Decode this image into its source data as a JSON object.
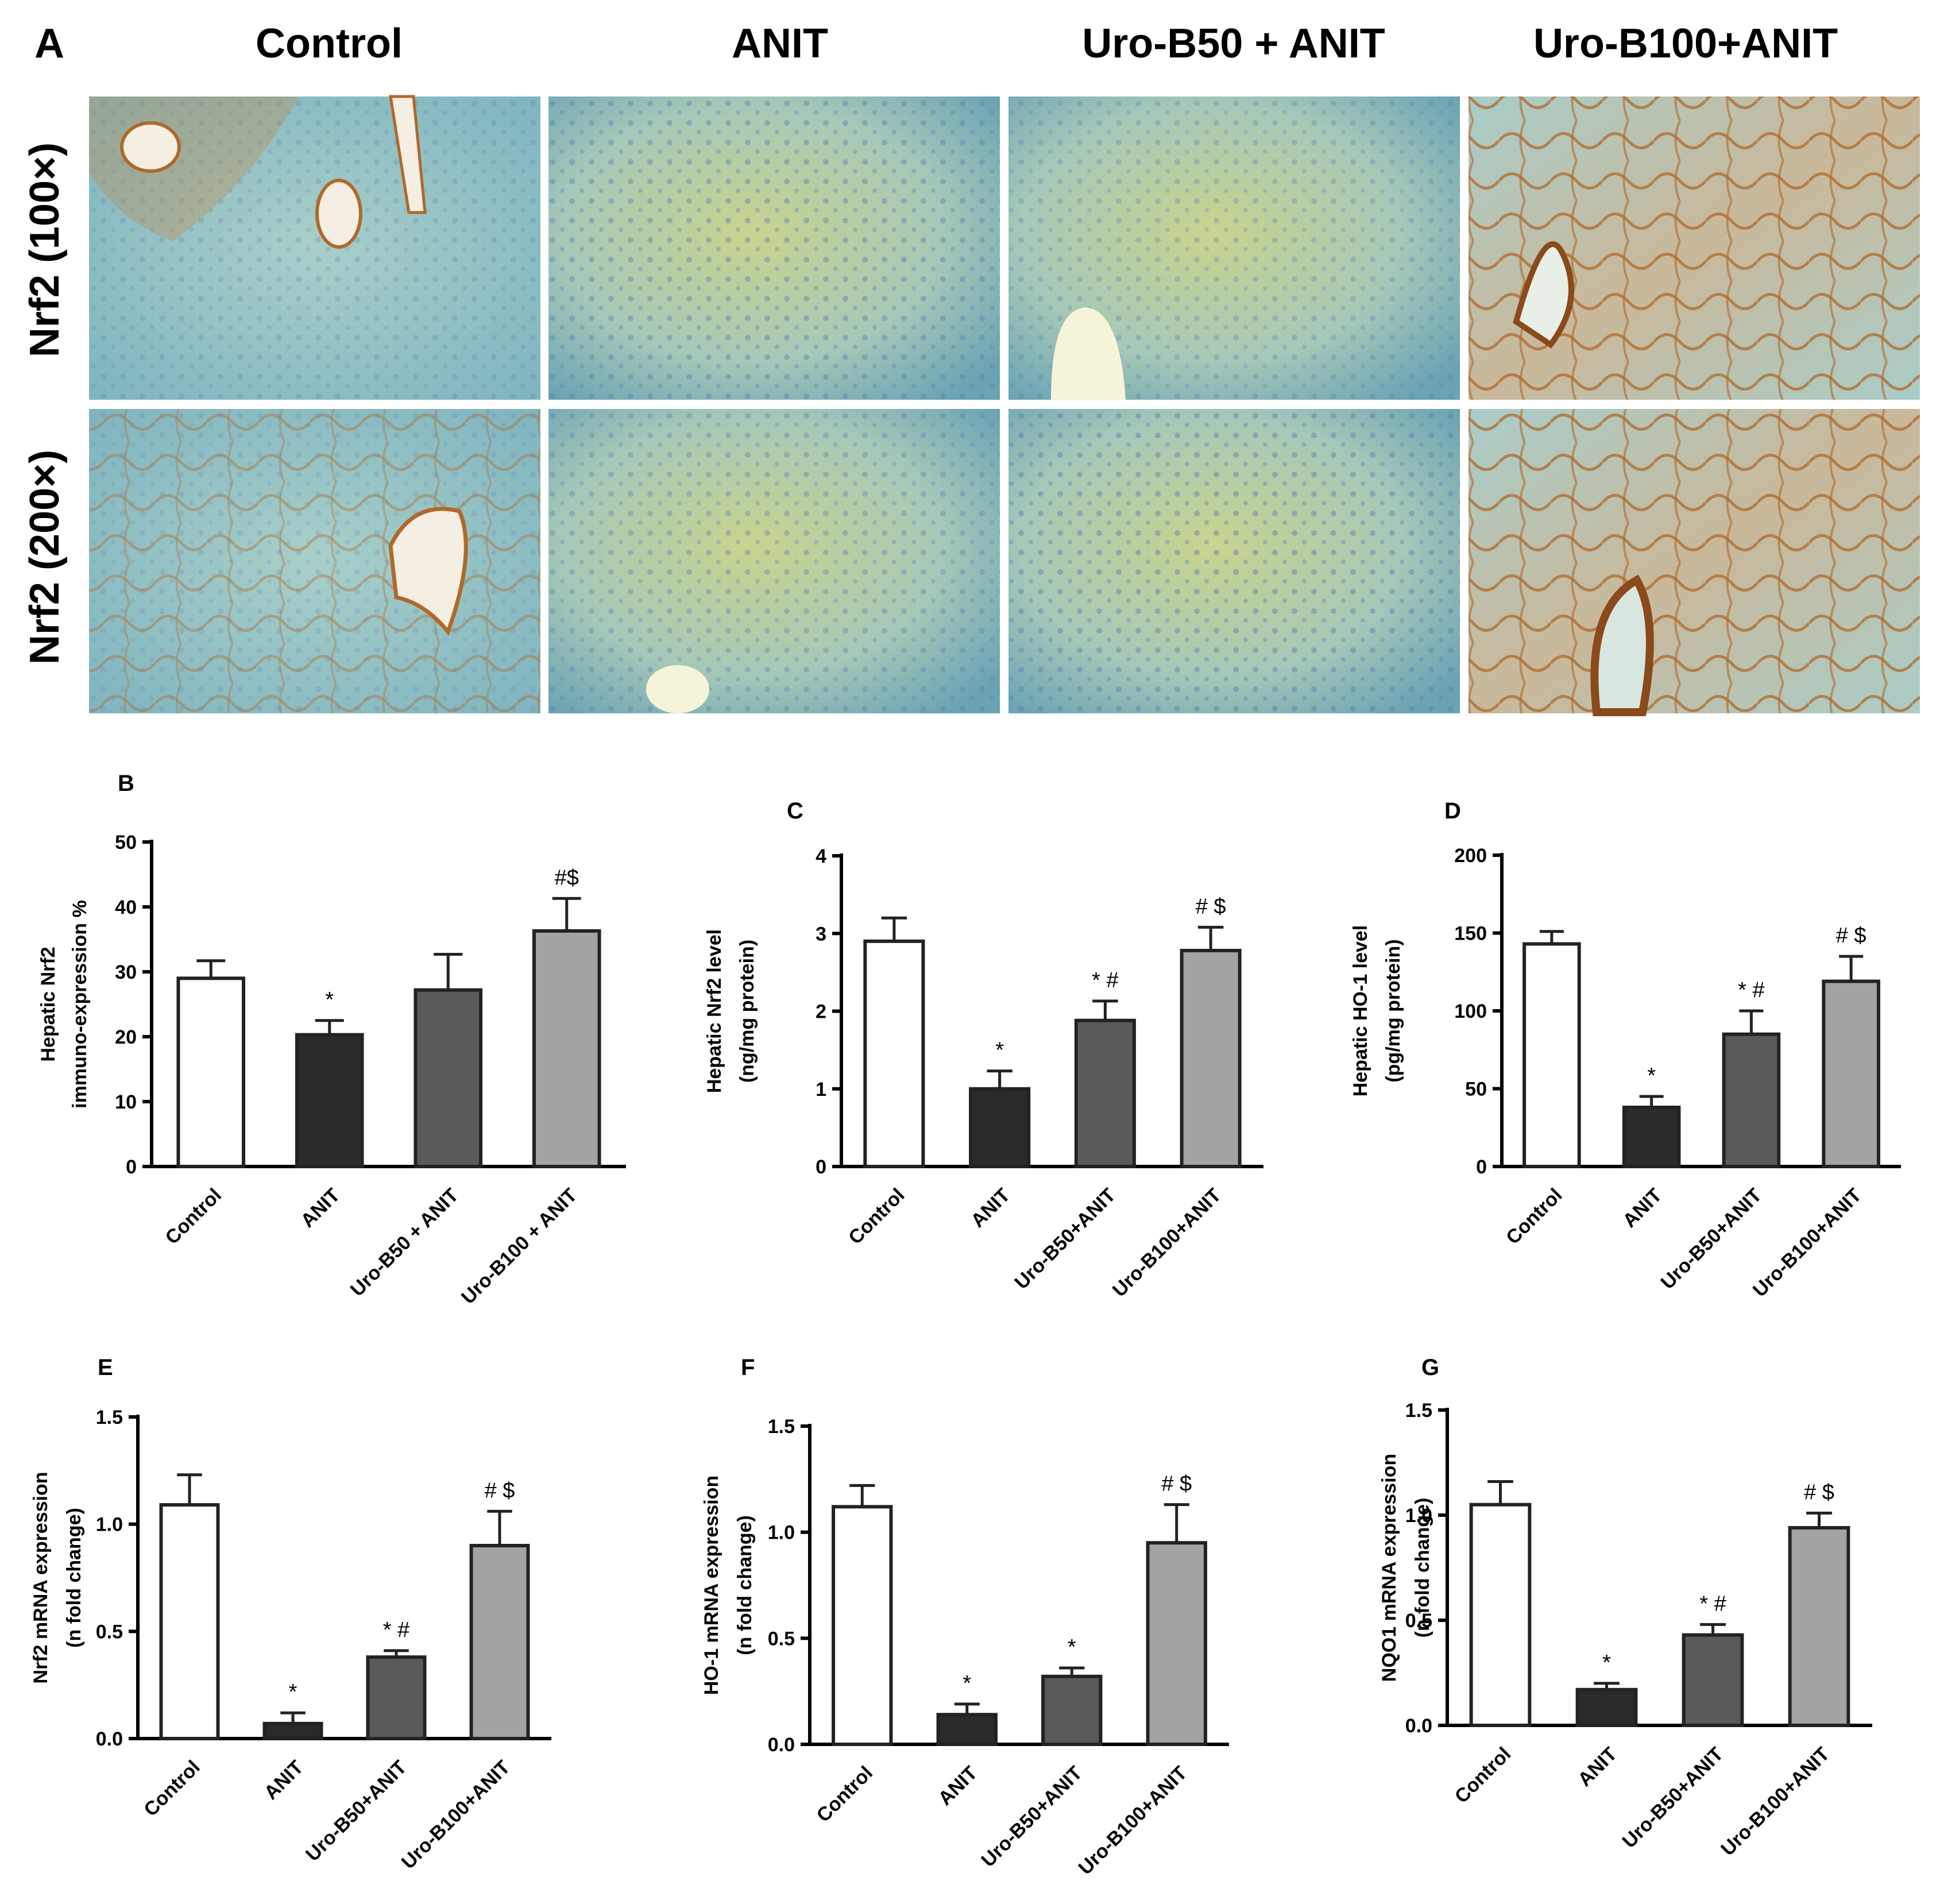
{
  "panel_a": {
    "letter": "A",
    "columns": [
      "Control",
      "ANIT",
      "Uro-B50 + ANIT",
      "Uro-B100+ANIT"
    ],
    "rows": [
      "Nrf2 (100×)",
      "Nrf2 (200×)"
    ]
  },
  "colors": {
    "Control": "#ffffff",
    "ANIT": "#2a2a2a",
    "Uro-B50": "#5a5a5a",
    "Uro-B100": "#a3a3a3",
    "tissue_blue": "#8fc3c9",
    "stain_brown": "#b0692a"
  },
  "chart_data": [
    {
      "panel": "B",
      "type": "bar",
      "categories": [
        "Control",
        "ANIT",
        "Uro-B50 + ANIT",
        "Uro-B100 + ANIT"
      ],
      "values": [
        29,
        20.3,
        27.2,
        36.3
      ],
      "errors": [
        2.7,
        2.2,
        5.5,
        5.0
      ],
      "significance": [
        "",
        "*",
        "",
        "#$"
      ],
      "ylabel": [
        "Hepatic Nrf2",
        "immuno-expression %"
      ],
      "ylim": [
        0,
        50
      ],
      "yticks": [
        "0",
        "10",
        "20",
        "30",
        "40",
        "50"
      ]
    },
    {
      "panel": "C",
      "type": "bar",
      "categories": [
        "Control",
        "ANIT",
        "Uro-B50+ANIT",
        "Uro-B100+ANIT"
      ],
      "values": [
        2.9,
        1.0,
        1.88,
        2.78
      ],
      "errors": [
        0.3,
        0.23,
        0.25,
        0.3
      ],
      "significance": [
        "",
        "*",
        "* #",
        "# $"
      ],
      "ylabel": [
        "Hepatic Nrf2 level",
        "(ng/mg protein)"
      ],
      "ylim": [
        0,
        4
      ],
      "yticks": [
        "0",
        "1",
        "2",
        "3",
        "4"
      ]
    },
    {
      "panel": "D",
      "type": "bar",
      "categories": [
        "Control",
        "ANIT",
        "Uro-B50+ANIT",
        "Uro-B100+ANIT"
      ],
      "values": [
        143,
        38,
        85,
        119
      ],
      "errors": [
        8,
        7,
        15,
        16
      ],
      "significance": [
        "",
        "*",
        "* #",
        "# $"
      ],
      "ylabel": [
        "Hepatic HO-1 level",
        "(pg/mg protein)"
      ],
      "ylim": [
        0,
        200
      ],
      "yticks": [
        "0",
        "50",
        "100",
        "150",
        "200"
      ]
    },
    {
      "panel": "E",
      "type": "bar",
      "categories": [
        "Control",
        "ANIT",
        "Uro-B50+ANIT",
        "Uro-B100+ANIT"
      ],
      "values": [
        1.09,
        0.07,
        0.38,
        0.9
      ],
      "errors": [
        0.14,
        0.05,
        0.03,
        0.16
      ],
      "significance": [
        "",
        "*",
        "* #",
        "# $"
      ],
      "ylabel": [
        "Nrf2 mRNA expression",
        "(n fold change)"
      ],
      "ylim": [
        0,
        1.5
      ],
      "yticks": [
        "0.0",
        "0.5",
        "1.0",
        "1.5"
      ]
    },
    {
      "panel": "F",
      "type": "bar",
      "categories": [
        "Control",
        "ANIT",
        "Uro-B50+ANIT",
        "Uro-B100+ANIT"
      ],
      "values": [
        1.12,
        0.14,
        0.32,
        0.95
      ],
      "errors": [
        0.1,
        0.05,
        0.04,
        0.18
      ],
      "significance": [
        "",
        "*",
        "*",
        "# $"
      ],
      "ylabel": [
        "HO-1 mRNA expression",
        "(n fold change)"
      ],
      "ylim": [
        0,
        1.5
      ],
      "yticks": [
        "0.0",
        "0.5",
        "1.0",
        "1.5"
      ]
    },
    {
      "panel": "G",
      "type": "bar",
      "categories": [
        "Control",
        "ANIT",
        "Uro-B50+ANIT",
        "Uro-B100+ANIT"
      ],
      "values": [
        1.05,
        0.17,
        0.43,
        0.94
      ],
      "errors": [
        0.11,
        0.03,
        0.05,
        0.07
      ],
      "significance": [
        "",
        "*",
        "* #",
        "# $"
      ],
      "ylabel": [
        "NQO1 mRNA expression",
        "(n fold change)"
      ],
      "ylim": [
        0,
        1.5
      ],
      "yticks": [
        "0.0",
        "0.5",
        "1.0",
        "1.5"
      ]
    }
  ]
}
